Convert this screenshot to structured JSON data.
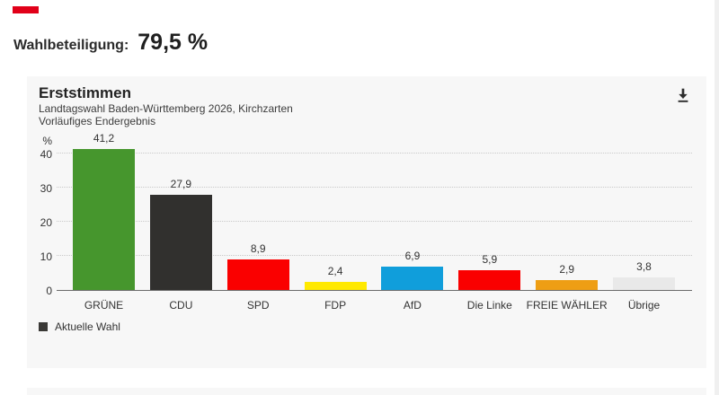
{
  "page": {
    "accent_color": "#e10019",
    "turnout_label": "Wahlbeteiligung:",
    "turnout_value": "79,5 %"
  },
  "card": {
    "title": "Erststimmen",
    "subtitle_line1": "Landtagswahl Baden-Württemberg 2026, Kirchzarten",
    "subtitle_line2": "Vorläufiges Endergebnis",
    "icons": {
      "download": "download-arrow-with-bar"
    },
    "legend": [
      {
        "label": "Aktuelle Wahl",
        "color": "#3a3936"
      }
    ]
  },
  "chart_data": {
    "type": "bar",
    "title": "Erststimmen",
    "subtitle": "Landtagswahl Baden-Württemberg 2026, Kirchzarten — Vorläufiges Endergebnis",
    "categories": [
      "GRÜNE",
      "CDU",
      "SPD",
      "FDP",
      "AfD",
      "Die Linke",
      "FREIE WÄHLER",
      "Übrige"
    ],
    "values": [
      41.2,
      27.9,
      8.9,
      2.4,
      6.9,
      5.9,
      2.9,
      3.8
    ],
    "value_labels": [
      "41,2",
      "27,9",
      "8,9",
      "2,4",
      "6,9",
      "5,9",
      "2,9",
      "3,8"
    ],
    "bar_colors": [
      "#46962d",
      "#31302e",
      "#fa0000",
      "#ffe900",
      "#109edb",
      "#fa0000",
      "#ee9e14",
      "#e9e9e9"
    ],
    "series_name": "Aktuelle Wahl",
    "ylabel": "%",
    "yticks": [
      0,
      10,
      20,
      30,
      40
    ],
    "ylim": [
      0,
      46
    ],
    "grid": "horizontal-dotted",
    "legend_position": "bottom-left"
  }
}
